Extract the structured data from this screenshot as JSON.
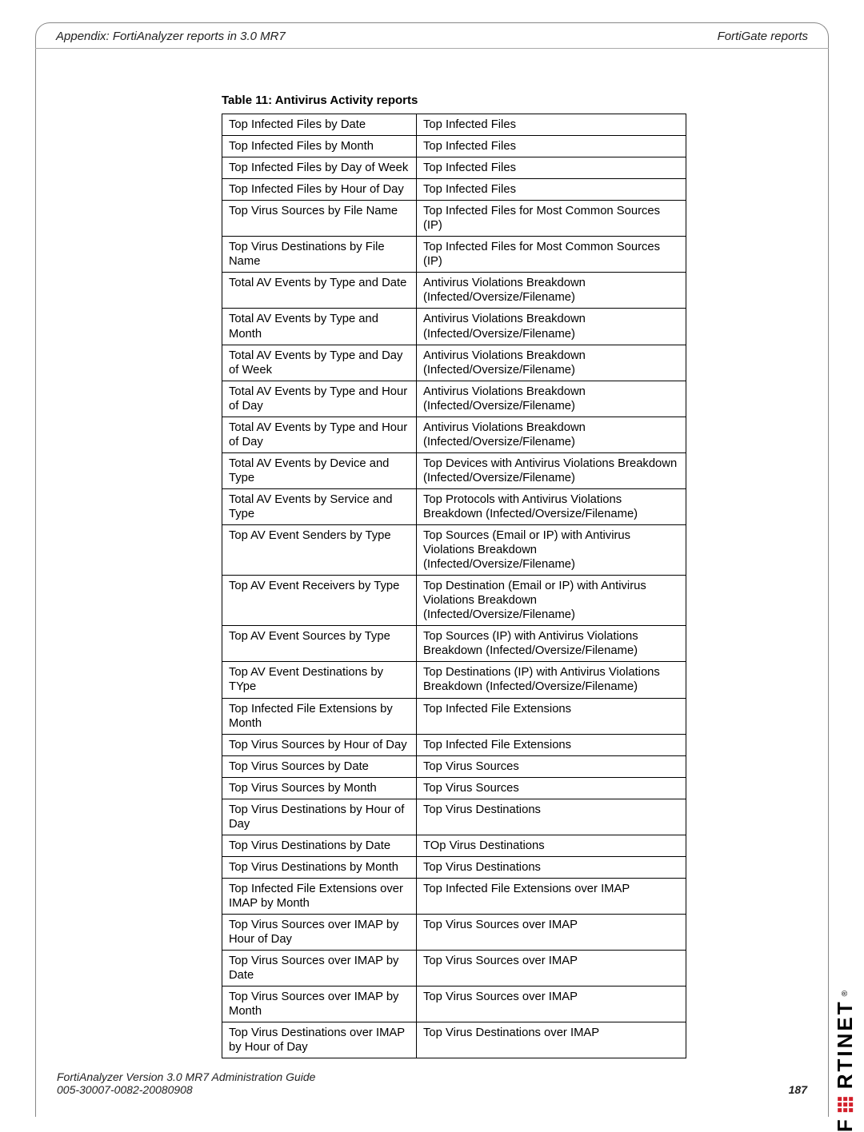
{
  "header": {
    "left": "Appendix: FortiAnalyzer reports in 3.0 MR7",
    "right": "FortiGate reports"
  },
  "table": {
    "caption": "Table 11: Antivirus Activity reports",
    "rows": [
      [
        "Top Infected Files by Date",
        "Top Infected Files"
      ],
      [
        "Top Infected Files by Month",
        "Top Infected Files"
      ],
      [
        "Top Infected Files by Day of Week",
        "Top Infected Files"
      ],
      [
        "Top Infected Files by Hour of Day",
        "Top Infected Files"
      ],
      [
        "Top Virus Sources by File Name",
        "Top Infected Files for Most Common Sources (IP)"
      ],
      [
        "Top Virus Destinations by File Name",
        "Top Infected Files for Most Common Sources (IP)"
      ],
      [
        "Total AV Events by Type and Date",
        "Antivirus Violations Breakdown (Infected/Oversize/Filename)"
      ],
      [
        "Total AV Events by Type and Month",
        "Antivirus Violations Breakdown (Infected/Oversize/Filename)"
      ],
      [
        "Total AV Events by Type and Day of Week",
        "Antivirus Violations Breakdown (Infected/Oversize/Filename)"
      ],
      [
        "Total AV Events by Type and Hour of Day",
        "Antivirus Violations Breakdown (Infected/Oversize/Filename)"
      ],
      [
        "Total AV Events by Type and Hour of Day",
        "Antivirus Violations Breakdown (Infected/Oversize/Filename)"
      ],
      [
        "Total AV Events by Device and Type",
        "Top Devices with Antivirus Violations Breakdown (Infected/Oversize/Filename)"
      ],
      [
        "Total AV Events by Service and Type",
        "Top Protocols with Antivirus Violations Breakdown (Infected/Oversize/Filename)"
      ],
      [
        "Top AV Event Senders by Type",
        "Top Sources (Email or IP) with Antivirus Violations Breakdown (Infected/Oversize/Filename)"
      ],
      [
        "Top AV Event Receivers by Type",
        "Top Destination (Email or IP) with Antivirus Violations Breakdown (Infected/Oversize/Filename)"
      ],
      [
        "Top AV Event Sources by Type",
        "Top Sources (IP) with Antivirus Violations Breakdown (Infected/Oversize/Filename)"
      ],
      [
        "Top AV Event Destinations by TYpe",
        "Top Destinations (IP) with Antivirus Violations Breakdown (Infected/Oversize/Filename)"
      ],
      [
        "Top Infected File Extensions by Month",
        "Top Infected File Extensions"
      ],
      [
        "Top Virus Sources by Hour of Day",
        "Top Infected File Extensions"
      ],
      [
        "Top Virus Sources by Date",
        "Top Virus Sources"
      ],
      [
        "Top Virus Sources by Month",
        "Top Virus Sources"
      ],
      [
        "Top Virus Destinations by Hour of Day",
        "Top Virus Destinations"
      ],
      [
        "Top Virus Destinations by Date",
        "TOp Virus Destinations"
      ],
      [
        "Top Virus Destinations by Month",
        "Top Virus Destinations"
      ],
      [
        "Top Infected File Extensions over IMAP by Month",
        "Top Infected File Extensions over IMAP"
      ],
      [
        "Top Virus Sources over IMAP by Hour of Day",
        "Top Virus Sources over IMAP"
      ],
      [
        "Top Virus Sources over IMAP by Date",
        "Top Virus Sources over IMAP"
      ],
      [
        "Top Virus Sources over IMAP by Month",
        "Top Virus Sources over IMAP"
      ],
      [
        "Top Virus Destinations over IMAP by Hour of Day",
        "Top Virus Destinations over IMAP"
      ]
    ]
  },
  "footer": {
    "line1": "FortiAnalyzer Version 3.0 MR7 Administration Guide",
    "doc_id": "005-30007-0082-20080908",
    "page": "187"
  },
  "brand": {
    "name": "F",
    "rest": "RTINET",
    "reg": "®"
  }
}
